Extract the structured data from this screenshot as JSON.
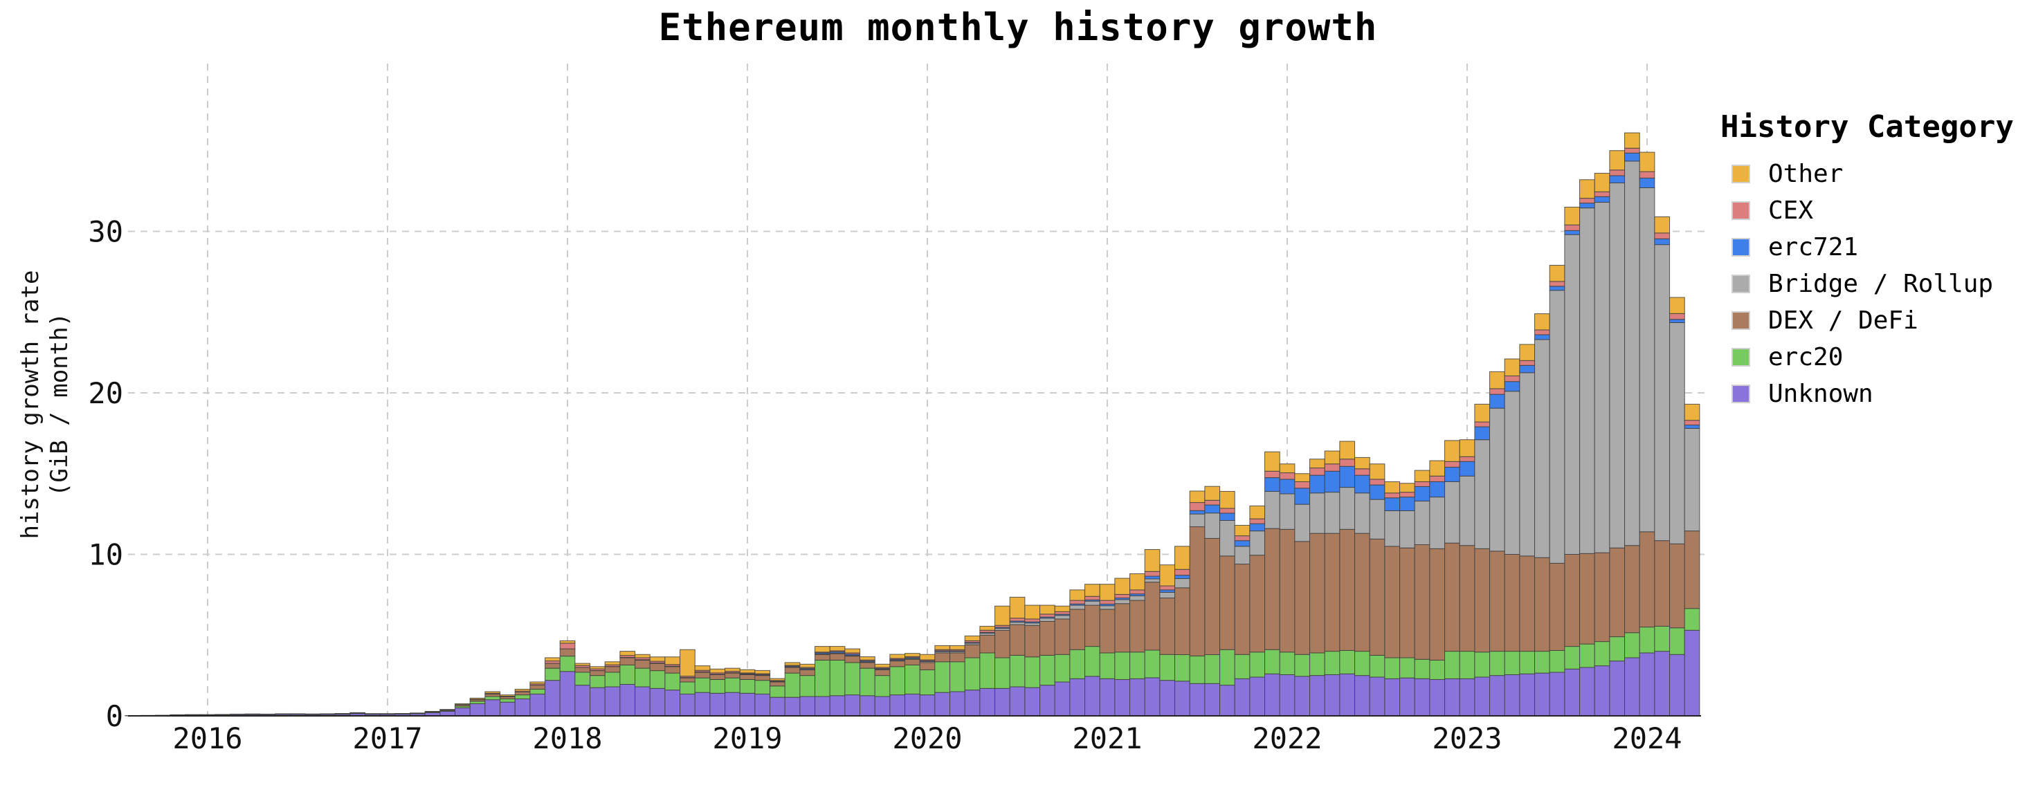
{
  "title": "Ethereum monthly history growth",
  "y_axis": {
    "label_line1": "history growth rate",
    "label_line2": "(GiB / month)",
    "tick_labels": [
      "0",
      "10",
      "20",
      "30"
    ],
    "tick_values": [
      0,
      10,
      20,
      30
    ]
  },
  "x_axis": {
    "year_ticks": [
      "2016",
      "2017",
      "2018",
      "2019",
      "2020",
      "2021",
      "2022",
      "2023",
      "2024"
    ]
  },
  "legend": {
    "title": "History Category",
    "items": [
      {
        "label": "Other",
        "color": "#ecb23d"
      },
      {
        "label": "CEX",
        "color": "#dd7e7e"
      },
      {
        "label": "erc721",
        "color": "#3d80ec"
      },
      {
        "label": "Bridge / Rollup",
        "color": "#ababab"
      },
      {
        "label": "DEX / DeFi",
        "color": "#aa7b5c"
      },
      {
        "label": "erc20",
        "color": "#77ca5d"
      },
      {
        "label": "Unknown",
        "color": "#8a73db"
      }
    ]
  },
  "colors": {
    "background": "#ffffff",
    "grid": "#cccccc",
    "bar_outline": "#3e3e3e",
    "axis_line": "#222222",
    "text": "#111111"
  },
  "chart_data": {
    "type": "bar",
    "subtype": "stacked-monthly",
    "unit": "GiB / month",
    "x_start": "2015-08",
    "x_end": "2024-04",
    "months_count": 105,
    "ylim": [
      0,
      37
    ],
    "grid": "dashed",
    "legend_position": "right",
    "stack_order_bottom_to_top": [
      "Unknown",
      "erc20",
      "DEX / DeFi",
      "Bridge / Rollup",
      "erc721",
      "CEX",
      "Other"
    ],
    "series": [
      {
        "name": "Unknown",
        "color": "#8a73db",
        "values": [
          0.02,
          0.03,
          0.03,
          0.05,
          0.05,
          0.05,
          0.06,
          0.08,
          0.08,
          0.08,
          0.09,
          0.09,
          0.08,
          0.09,
          0.1,
          0.14,
          0.1,
          0.1,
          0.11,
          0.13,
          0.2,
          0.28,
          0.5,
          0.75,
          1.0,
          0.85,
          1.05,
          1.35,
          2.2,
          2.75,
          1.9,
          1.75,
          1.8,
          1.95,
          1.8,
          1.7,
          1.6,
          1.35,
          1.45,
          1.4,
          1.45,
          1.4,
          1.35,
          1.15,
          1.15,
          1.2,
          1.2,
          1.25,
          1.3,
          1.25,
          1.2,
          1.3,
          1.35,
          1.3,
          1.45,
          1.5,
          1.6,
          1.7,
          1.7,
          1.8,
          1.75,
          1.9,
          2.1,
          2.3,
          2.45,
          2.3,
          2.25,
          2.3,
          2.36,
          2.2,
          2.15,
          2.0,
          2.0,
          1.9,
          2.3,
          2.4,
          2.6,
          2.55,
          2.45,
          2.5,
          2.55,
          2.6,
          2.5,
          2.4,
          2.3,
          2.35,
          2.3,
          2.25,
          2.3,
          2.3,
          2.4,
          2.5,
          2.55,
          2.6,
          2.65,
          2.7,
          2.9,
          3.0,
          3.1,
          3.4,
          3.6,
          3.9,
          4.0,
          3.8,
          5.3
        ]
      },
      {
        "name": "erc20",
        "color": "#77ca5d",
        "values": [
          0,
          0,
          0,
          0.01,
          0.01,
          0.01,
          0.01,
          0.01,
          0.01,
          0.01,
          0.02,
          0.02,
          0.02,
          0.02,
          0.02,
          0.03,
          0.02,
          0.02,
          0.02,
          0.02,
          0.03,
          0.05,
          0.1,
          0.15,
          0.2,
          0.2,
          0.25,
          0.3,
          0.75,
          0.95,
          0.8,
          0.75,
          0.9,
          1.2,
          1.15,
          1.1,
          1.05,
          0.75,
          0.9,
          0.85,
          0.9,
          0.85,
          0.85,
          0.7,
          1.5,
          1.3,
          2.25,
          2.2,
          2.0,
          1.7,
          1.3,
          1.75,
          1.8,
          1.55,
          1.9,
          1.85,
          2.0,
          2.2,
          1.9,
          1.95,
          1.9,
          1.85,
          1.7,
          1.8,
          1.85,
          1.6,
          1.7,
          1.65,
          1.71,
          1.6,
          1.64,
          1.71,
          1.79,
          2.2,
          1.5,
          1.55,
          1.5,
          1.4,
          1.35,
          1.4,
          1.45,
          1.45,
          1.5,
          1.35,
          1.3,
          1.25,
          1.2,
          1.2,
          1.7,
          1.7,
          1.55,
          1.5,
          1.45,
          1.4,
          1.35,
          1.35,
          1.4,
          1.45,
          1.5,
          1.5,
          1.55,
          1.6,
          1.55,
          1.65,
          1.35
        ]
      },
      {
        "name": "DEX / DeFi",
        "color": "#aa7b5c",
        "values": [
          0,
          0,
          0.01,
          0.01,
          0.01,
          0.01,
          0.01,
          0.02,
          0.02,
          0.01,
          0.01,
          0.01,
          0.01,
          0.01,
          0.02,
          0.02,
          0.01,
          0.01,
          0.01,
          0.02,
          0.03,
          0.04,
          0.08,
          0.1,
          0.15,
          0.13,
          0.18,
          0.25,
          0.3,
          0.45,
          0.3,
          0.3,
          0.35,
          0.45,
          0.5,
          0.45,
          0.4,
          0.25,
          0.35,
          0.3,
          0.3,
          0.3,
          0.3,
          0.25,
          0.35,
          0.35,
          0.35,
          0.4,
          0.4,
          0.35,
          0.35,
          0.35,
          0.35,
          0.45,
          0.55,
          0.55,
          0.8,
          1.1,
          1.7,
          1.9,
          1.95,
          2.1,
          2.2,
          2.5,
          2.55,
          2.7,
          3.0,
          3.2,
          4.21,
          3.5,
          4.14,
          8.0,
          7.2,
          5.8,
          5.6,
          6.0,
          7.5,
          7.6,
          7.0,
          7.4,
          7.3,
          7.5,
          7.3,
          7.2,
          6.9,
          6.8,
          7.1,
          6.9,
          6.7,
          6.55,
          6.4,
          6.2,
          6.0,
          5.9,
          5.8,
          5.4,
          5.7,
          5.6,
          5.5,
          5.5,
          5.4,
          5.9,
          5.3,
          5.2,
          4.8
        ]
      },
      {
        "name": "Bridge / Rollup",
        "color": "#ababab",
        "values": [
          0,
          0,
          0,
          0,
          0,
          0,
          0,
          0,
          0,
          0,
          0,
          0,
          0,
          0,
          0,
          0,
          0,
          0,
          0,
          0,
          0,
          0,
          0,
          0,
          0,
          0,
          0,
          0,
          0,
          0,
          0,
          0.01,
          0.01,
          0.01,
          0.01,
          0.01,
          0.01,
          0.01,
          0.01,
          0.01,
          0.01,
          0.02,
          0.02,
          0.02,
          0.03,
          0.03,
          0.03,
          0.04,
          0.04,
          0.04,
          0.04,
          0.04,
          0.05,
          0.07,
          0.08,
          0.08,
          0.1,
          0.12,
          0.12,
          0.15,
          0.15,
          0.2,
          0.22,
          0.25,
          0.25,
          0.22,
          0.25,
          0.28,
          0.2,
          0.35,
          0.57,
          0.79,
          1.57,
          2.2,
          1.1,
          1.5,
          2.3,
          2.2,
          2.3,
          2.5,
          2.55,
          2.6,
          2.5,
          2.45,
          2.2,
          2.3,
          2.7,
          3.2,
          3.8,
          4.3,
          6.75,
          8.85,
          10.1,
          11.35,
          13.5,
          16.9,
          19.8,
          21.4,
          21.7,
          22.6,
          23.8,
          21.3,
          18.33,
          13.7,
          6.35
        ]
      },
      {
        "name": "erc721",
        "color": "#3d80ec",
        "values": [
          0,
          0,
          0,
          0,
          0,
          0,
          0,
          0,
          0,
          0,
          0,
          0,
          0,
          0,
          0,
          0,
          0,
          0,
          0,
          0,
          0,
          0,
          0,
          0,
          0,
          0,
          0,
          0,
          0,
          0,
          0,
          0,
          0,
          0.01,
          0.02,
          0.02,
          0.02,
          0.02,
          0.02,
          0.02,
          0.02,
          0.04,
          0.04,
          0.03,
          0.05,
          0.06,
          0.07,
          0.08,
          0.08,
          0.06,
          0.05,
          0.06,
          0.06,
          0.04,
          0.05,
          0.05,
          0.05,
          0.05,
          0.06,
          0.07,
          0.07,
          0.07,
          0.07,
          0.08,
          0.08,
          0.1,
          0.1,
          0.12,
          0.17,
          0.15,
          0.21,
          0.21,
          0.5,
          0.45,
          0.35,
          0.45,
          0.85,
          0.9,
          1.0,
          1.1,
          1.3,
          1.3,
          1.1,
          0.9,
          0.8,
          0.85,
          0.9,
          0.95,
          0.9,
          0.9,
          0.8,
          0.86,
          0.6,
          0.45,
          0.3,
          0.25,
          0.25,
          0.3,
          0.35,
          0.45,
          0.5,
          0.6,
          0.36,
          0.2,
          0.21
        ]
      },
      {
        "name": "CEX",
        "color": "#dd7e7e",
        "values": [
          0,
          0,
          0,
          0,
          0,
          0,
          0,
          0,
          0,
          0,
          0,
          0,
          0,
          0,
          0,
          0,
          0,
          0,
          0,
          0,
          0.01,
          0.01,
          0.02,
          0.03,
          0.05,
          0.04,
          0.06,
          0.08,
          0.15,
          0.35,
          0.12,
          0.1,
          0.1,
          0.12,
          0.12,
          0.1,
          0.1,
          0.08,
          0.09,
          0.08,
          0.08,
          0.05,
          0.05,
          0.04,
          0.05,
          0.06,
          0.05,
          0.06,
          0.08,
          0.06,
          0.06,
          0.06,
          0.06,
          0.06,
          0.07,
          0.07,
          0.1,
          0.13,
          0.12,
          0.18,
          0.18,
          0.18,
          0.16,
          0.22,
          0.22,
          0.23,
          0.22,
          0.25,
          0.29,
          0.25,
          0.36,
          0.5,
          0.29,
          0.3,
          0.3,
          0.3,
          0.4,
          0.4,
          0.4,
          0.45,
          0.45,
          0.45,
          0.4,
          0.35,
          0.3,
          0.3,
          0.3,
          0.35,
          0.35,
          0.3,
          0.3,
          0.35,
          0.35,
          0.3,
          0.3,
          0.3,
          0.35,
          0.3,
          0.3,
          0.35,
          0.3,
          0.4,
          0.36,
          0.36,
          0.29
        ]
      },
      {
        "name": "Other",
        "color": "#ecb23d",
        "values": [
          0,
          0,
          0,
          0,
          0.01,
          0.01,
          0.01,
          0,
          0.01,
          0.01,
          0.01,
          0.01,
          0.01,
          0.01,
          0.01,
          0.01,
          0.01,
          0.01,
          0.01,
          0.01,
          0.01,
          0.02,
          0.05,
          0.07,
          0.1,
          0.08,
          0.11,
          0.12,
          0.2,
          0.15,
          0.13,
          0.14,
          0.19,
          0.26,
          0.2,
          0.27,
          0.47,
          1.64,
          0.28,
          0.24,
          0.19,
          0.2,
          0.2,
          0.12,
          0.17,
          0.2,
          0.35,
          0.27,
          0.25,
          0.2,
          0.2,
          0.25,
          0.2,
          0.33,
          0.25,
          0.25,
          0.3,
          0.25,
          1.2,
          1.3,
          0.85,
          0.55,
          0.35,
          0.65,
          0.75,
          1.0,
          1.0,
          1.0,
          1.36,
          1.3,
          1.43,
          0.71,
          0.86,
          1.05,
          0.65,
          0.8,
          1.2,
          0.55,
          0.5,
          0.55,
          0.8,
          1.1,
          0.7,
          0.95,
          0.7,
          0.55,
          0.7,
          0.95,
          1.3,
          1.05,
          1.1,
          1.05,
          1.05,
          1.0,
          1.0,
          1.0,
          1.1,
          1.15,
          1.15,
          1.2,
          0.95,
          1.2,
          1.0,
          1.0,
          1.0
        ]
      }
    ]
  }
}
